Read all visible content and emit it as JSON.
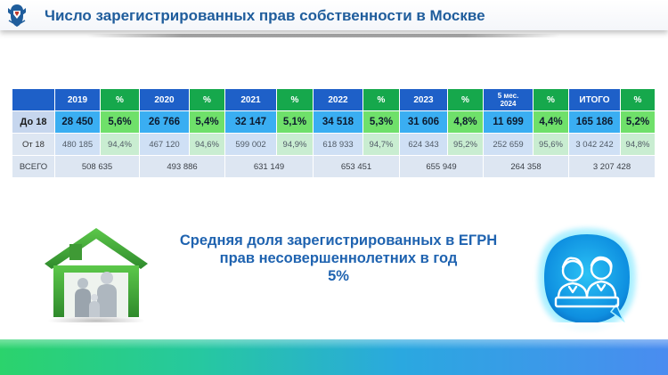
{
  "header": {
    "title": "Число зарегистрированных прав собственности в Москве",
    "logo_icon": "rosreestr-eagle-emblem-icon"
  },
  "table": {
    "columns": [
      {
        "label": "2019",
        "kind": "year"
      },
      {
        "label": "%",
        "kind": "pct"
      },
      {
        "label": "2020",
        "kind": "year"
      },
      {
        "label": "%",
        "kind": "pct"
      },
      {
        "label": "2021",
        "kind": "year"
      },
      {
        "label": "%",
        "kind": "pct"
      },
      {
        "label": "2022",
        "kind": "year"
      },
      {
        "label": "%",
        "kind": "pct"
      },
      {
        "label": "2023",
        "kind": "year"
      },
      {
        "label": "%",
        "kind": "pct"
      },
      {
        "label": "5 мес. 2024",
        "label_line1": "5 мес.",
        "label_line2": "2024",
        "kind": "year"
      },
      {
        "label": "%",
        "kind": "pct"
      },
      {
        "label": "ИТОГО",
        "kind": "year"
      },
      {
        "label": "%",
        "kind": "pct"
      }
    ],
    "rows": [
      {
        "label": "До 18",
        "cells": [
          "28 450",
          "5,6%",
          "26 766",
          "5,4%",
          "32 147",
          "5,1%",
          "34 518",
          "5,3%",
          "31 606",
          "4,8%",
          "11 699",
          "4,4%",
          "165 186",
          "5,2%"
        ]
      },
      {
        "label": "От 18",
        "cells": [
          "480 185",
          "94,4%",
          "467 120",
          "94,6%",
          "599 002",
          "94,9%",
          "618 933",
          "94,7%",
          "624 343",
          "95,2%",
          "252 659",
          "95,6%",
          "3 042 242",
          "94,8%"
        ]
      },
      {
        "label": "ВСЕГО",
        "totals": [
          "508 635",
          "493 886",
          "631 149",
          "653 451",
          "655 949",
          "264 358",
          "3 207 428"
        ]
      }
    ]
  },
  "headline": {
    "line1": "Средняя доля зарегистрированных в ЕГРН",
    "line2": "прав несовершеннолетних в год",
    "line3": "5%"
  },
  "illustrations": {
    "left": "family-house-icon",
    "right": "children-avatar-badge-icon"
  },
  "colors": {
    "title": "#1f5d9c",
    "year_header": "#1e60c8",
    "pct_header": "#16a84c",
    "u18_num": "#3aaef2",
    "u18_pct": "#6fe06a",
    "o18_num": "#cfe0f5",
    "o18_pct": "#c9edd1",
    "total": "#dde6f2",
    "headline": "#1f63b0"
  }
}
